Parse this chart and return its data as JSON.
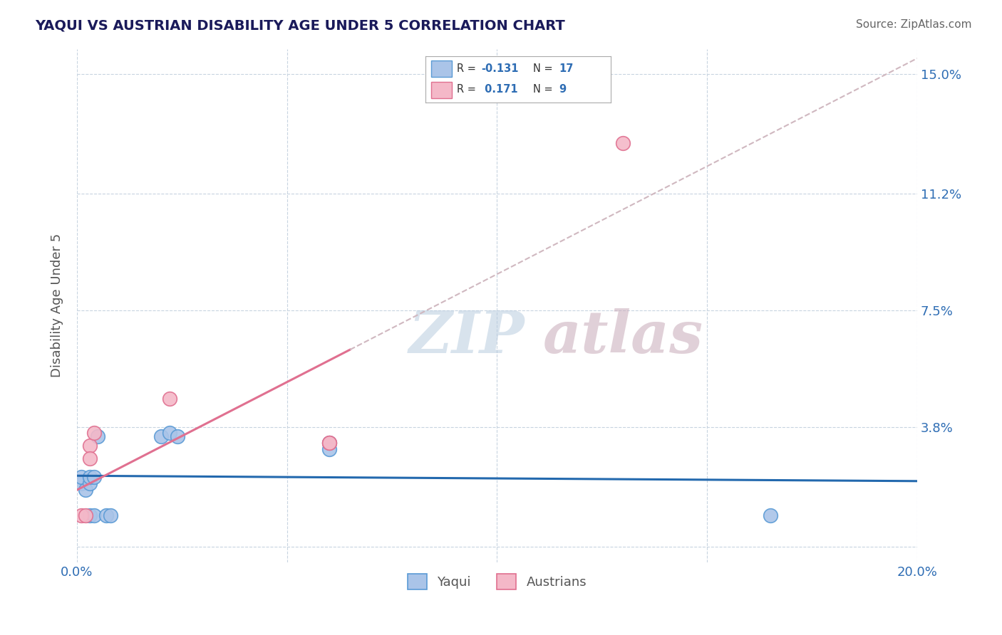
{
  "title": "YAQUI VS AUSTRIAN DISABILITY AGE UNDER 5 CORRELATION CHART",
  "source": "Source: ZipAtlas.com",
  "ylabel": "Disability Age Under 5",
  "xlim": [
    0.0,
    0.2
  ],
  "ylim": [
    -0.005,
    0.158
  ],
  "yticks": [
    0.0,
    0.038,
    0.075,
    0.112,
    0.15
  ],
  "ytick_labels": [
    "",
    "3.8%",
    "7.5%",
    "11.2%",
    "15.0%"
  ],
  "xticks": [
    0.0,
    0.05,
    0.1,
    0.15,
    0.2
  ],
  "xtick_labels": [
    "0.0%",
    "",
    "",
    "",
    "20.0%"
  ],
  "yaqui_x": [
    0.001,
    0.001,
    0.002,
    0.003,
    0.003,
    0.003,
    0.004,
    0.004,
    0.005,
    0.007,
    0.008,
    0.02,
    0.022,
    0.024,
    0.06,
    0.06,
    0.165
  ],
  "yaqui_y": [
    0.02,
    0.022,
    0.018,
    0.02,
    0.022,
    0.01,
    0.01,
    0.022,
    0.035,
    0.01,
    0.01,
    0.035,
    0.036,
    0.035,
    0.033,
    0.031,
    0.01
  ],
  "austrian_x": [
    0.001,
    0.002,
    0.003,
    0.003,
    0.004,
    0.022,
    0.06,
    0.06,
    0.13
  ],
  "austrian_y": [
    0.01,
    0.01,
    0.032,
    0.028,
    0.036,
    0.047,
    0.033,
    0.033,
    0.128
  ],
  "yaqui_color": "#aac4e8",
  "yaqui_edge": "#5b9bd5",
  "austrian_color": "#f4b8c8",
  "austrian_edge": "#e07090",
  "trend_yaqui_color": "#2369ae",
  "trend_austrian_color": "#e07090",
  "trend_dashed_color": "#d0b8c0",
  "R_yaqui": -0.131,
  "N_yaqui": 17,
  "R_austrian": 0.171,
  "N_austrian": 9,
  "legend_labels": [
    "Yaqui",
    "Austrians"
  ],
  "background_color": "#ffffff",
  "grid_color": "#c8d4e0",
  "title_color": "#1a1a5a",
  "axis_color": "#2e6db4",
  "source_color": "#666666"
}
